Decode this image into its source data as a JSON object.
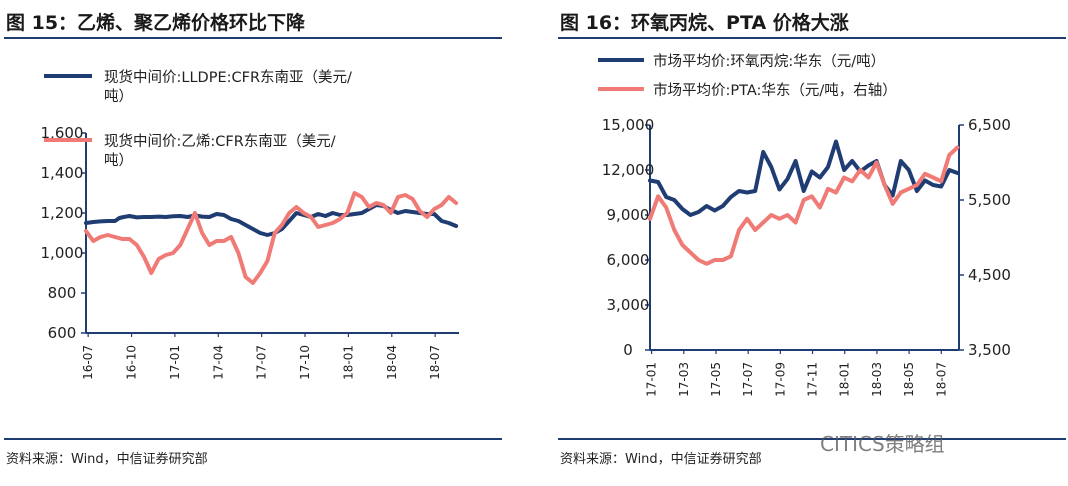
{
  "left_panel": {
    "title": "图 15：乙烯、聚乙烯价格环比下降",
    "source": "资料来源：Wind，中信证券研究部"
  },
  "right_panel": {
    "title": "图 16：环氧丙烷、PTA 价格大涨",
    "source": "资料来源：Wind，中信证券研究部"
  },
  "watermark": "CITICS策略组",
  "colors": {
    "navy": "#1f3d73",
    "salmon": "#f07a75",
    "rule": "#1f3d73"
  },
  "chart_data": [
    {
      "type": "line",
      "legend": [
        {
          "label_lines": [
            "现货中间价:LLDPE:CFR东南亚（美元/",
            "吨）"
          ],
          "color": "#1f3d73"
        },
        {
          "label_lines": [
            "现货中间价:乙烯:CFR东南亚（美元/",
            "吨）"
          ],
          "color": "#f07a75"
        }
      ],
      "x_tick_labels": [
        "16-07",
        "16-10",
        "17-01",
        "17-04",
        "17-07",
        "17-10",
        "18-01",
        "18-04",
        "18-07"
      ],
      "y_tick_labels": [
        "600",
        "800",
        "1,000",
        "1,200",
        "1,400",
        "1,600"
      ],
      "ylim": [
        600,
        1600
      ],
      "xlim": [
        0,
        25.7
      ],
      "series": [
        {
          "name": "现货中间价:LLDPE:CFR东南亚（美元/吨）",
          "color": "#1f3d73",
          "axis": "left",
          "x": [
            0,
            0.5,
            1,
            1.5,
            2,
            2.3,
            2.6,
            3,
            3.5,
            4,
            4.5,
            5,
            5.5,
            6,
            6.5,
            7,
            7.5,
            8,
            8.5,
            9,
            9.5,
            10,
            10.5,
            11,
            11.5,
            12,
            12.5,
            13,
            13.5,
            14,
            14.5,
            15,
            15.5,
            16,
            16.5,
            17,
            17.5,
            18,
            18.5,
            19,
            19.5,
            20,
            20.5,
            21,
            21.5,
            22,
            22.5,
            23,
            23.5,
            24,
            24.5,
            25,
            25.5
          ],
          "y": [
            1150,
            1155,
            1158,
            1160,
            1160,
            1175,
            1180,
            1185,
            1178,
            1180,
            1180,
            1182,
            1180,
            1184,
            1185,
            1180,
            1188,
            1182,
            1180,
            1195,
            1190,
            1170,
            1160,
            1140,
            1120,
            1100,
            1090,
            1100,
            1120,
            1160,
            1200,
            1190,
            1180,
            1195,
            1185,
            1200,
            1190,
            1190,
            1195,
            1200,
            1220,
            1240,
            1235,
            1215,
            1200,
            1210,
            1205,
            1200,
            1195,
            1195,
            1160,
            1150,
            1135
          ]
        },
        {
          "name": "现货中间价:乙烯:CFR东南亚（美元/吨）",
          "color": "#f07a75",
          "axis": "left",
          "x": [
            0,
            0.5,
            1,
            1.5,
            2,
            2.5,
            3,
            3.5,
            4,
            4.5,
            5,
            5.5,
            6,
            6.5,
            7,
            7.5,
            8,
            8.5,
            9,
            9.5,
            10,
            10.5,
            11,
            11.5,
            12,
            12.5,
            13,
            13.5,
            14,
            14.5,
            15,
            15.5,
            16,
            16.5,
            17,
            17.5,
            18,
            18.5,
            19,
            19.5,
            20,
            20.5,
            21,
            21.5,
            22,
            22.5,
            23,
            23.5,
            24,
            24.5,
            25,
            25.5
          ],
          "y": [
            1110,
            1060,
            1080,
            1090,
            1080,
            1070,
            1070,
            1040,
            980,
            900,
            970,
            990,
            1000,
            1040,
            1120,
            1200,
            1100,
            1040,
            1060,
            1060,
            1080,
            1000,
            880,
            850,
            900,
            960,
            1100,
            1140,
            1200,
            1230,
            1200,
            1180,
            1130,
            1140,
            1150,
            1170,
            1200,
            1300,
            1280,
            1230,
            1250,
            1240,
            1200,
            1280,
            1290,
            1270,
            1210,
            1180,
            1220,
            1240,
            1280,
            1250
          ]
        }
      ]
    },
    {
      "type": "line",
      "legend": [
        {
          "label_lines": [
            "市场平均价:环氧丙烷:华东（元/吨）"
          ],
          "color": "#1f3d73"
        },
        {
          "label_lines": [
            "市场平均价:PTA:华东（元/吨，右轴）"
          ],
          "color": "#f07a75"
        }
      ],
      "x_tick_labels": [
        "17-01",
        "17-03",
        "17-05",
        "17-07",
        "17-09",
        "17-11",
        "18-01",
        "18-03",
        "18-05",
        "18-07"
      ],
      "y_tick_labels": [
        "0",
        "3,000",
        "6,000",
        "9,000",
        "12,000",
        "15,000"
      ],
      "ylim": [
        0,
        15000
      ],
      "y2_tick_labels": [
        "3,500",
        "4,500",
        "5,500",
        "6,500"
      ],
      "y2lim": [
        3500,
        6500
      ],
      "xlim": [
        0,
        19.1
      ],
      "series": [
        {
          "name": "市场平均价:环氧丙烷:华东（元/吨）",
          "color": "#1f3d73",
          "axis": "left",
          "x": [
            0,
            0.5,
            1,
            1.5,
            2,
            2.5,
            3,
            3.5,
            4,
            4.5,
            5,
            5.5,
            6,
            6.5,
            7,
            7.5,
            8,
            8.5,
            9,
            9.5,
            10,
            10.5,
            11,
            11.5,
            12,
            12.5,
            13,
            13.5,
            14,
            14.5,
            15,
            15.5,
            16,
            16.5,
            17,
            17.5,
            18,
            18.5,
            19
          ],
          "y": [
            11300,
            11200,
            10200,
            10000,
            9400,
            9000,
            9200,
            9600,
            9300,
            9600,
            10200,
            10600,
            10500,
            10600,
            13200,
            12200,
            10700,
            11400,
            12600,
            10600,
            11900,
            11500,
            12200,
            13900,
            12000,
            12600,
            11900,
            12300,
            12600,
            11000,
            10300,
            12600,
            12000,
            10600,
            11300,
            11000,
            10900,
            12000,
            11800
          ]
        },
        {
          "name": "市场平均价:PTA:华东（元/吨，右轴）",
          "color": "#f07a75",
          "axis": "right",
          "x": [
            0,
            0.5,
            1,
            1.5,
            2,
            2.5,
            3,
            3.5,
            4,
            4.5,
            5,
            5.5,
            6,
            6.5,
            7,
            7.5,
            8,
            8.5,
            9,
            9.5,
            10,
            10.5,
            11,
            11.5,
            12,
            12.5,
            13,
            13.5,
            14,
            14.5,
            15,
            15.5,
            16,
            16.5,
            17,
            17.5,
            18,
            18.5,
            19
          ],
          "y": [
            5250,
            5550,
            5400,
            5100,
            4900,
            4800,
            4700,
            4650,
            4700,
            4700,
            4750,
            5100,
            5250,
            5100,
            5200,
            5300,
            5250,
            5300,
            5200,
            5500,
            5550,
            5400,
            5650,
            5600,
            5800,
            5750,
            5900,
            5800,
            6000,
            5700,
            5450,
            5600,
            5650,
            5700,
            5850,
            5800,
            5750,
            6100,
            6200
          ]
        }
      ]
    }
  ]
}
